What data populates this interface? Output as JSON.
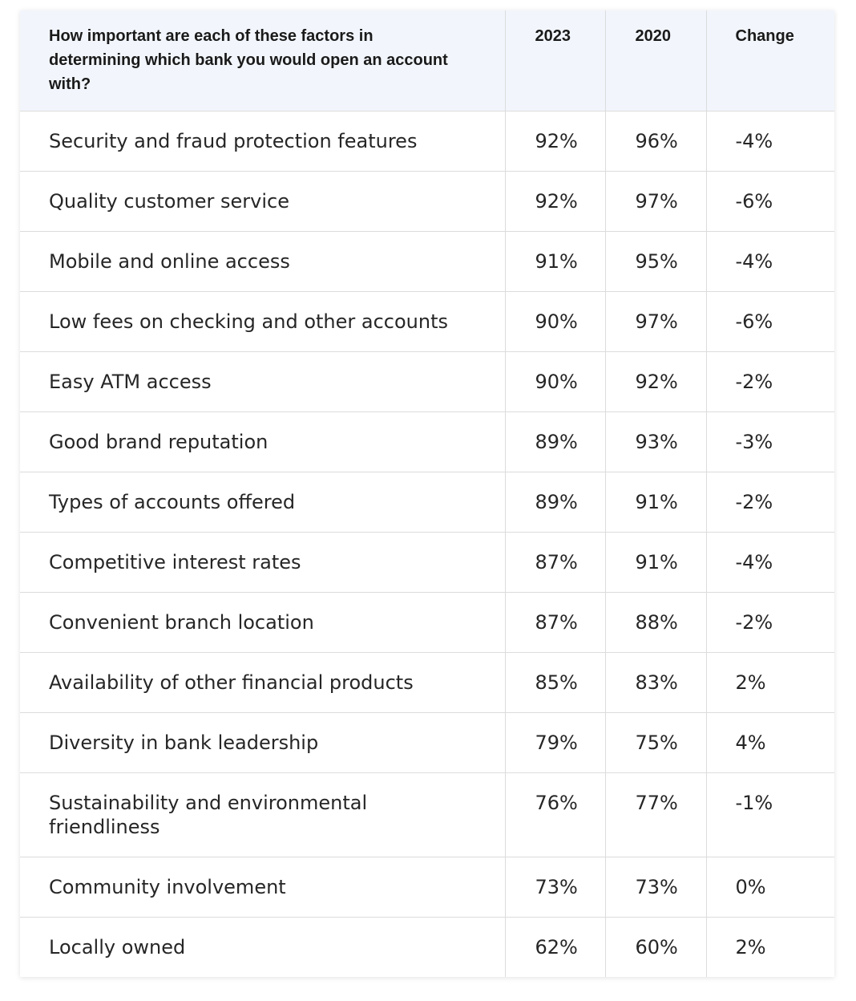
{
  "table": {
    "headers": {
      "factor": "How important are each of these factors in determining which bank you would open an account with?",
      "y2023": "2023",
      "y2020": "2020",
      "change": "Change"
    },
    "rows": [
      {
        "factor": "Security and fraud protection features",
        "y2023": "92%",
        "y2020": "96%",
        "change": "-4%"
      },
      {
        "factor": "Quality customer service",
        "y2023": "92%",
        "y2020": "97%",
        "change": "-6%"
      },
      {
        "factor": "Mobile and online access",
        "y2023": "91%",
        "y2020": "95%",
        "change": "-4%"
      },
      {
        "factor": "Low fees on checking and other accounts",
        "y2023": "90%",
        "y2020": "97%",
        "change": "-6%"
      },
      {
        "factor": "Easy ATM access",
        "y2023": "90%",
        "y2020": "92%",
        "change": "-2%"
      },
      {
        "factor": "Good brand reputation",
        "y2023": "89%",
        "y2020": "93%",
        "change": "-3%"
      },
      {
        "factor": "Types of accounts offered",
        "y2023": "89%",
        "y2020": "91%",
        "change": "-2%"
      },
      {
        "factor": "Competitive interest rates",
        "y2023": "87%",
        "y2020": "91%",
        "change": "-4%"
      },
      {
        "factor": "Convenient branch location",
        "y2023": "87%",
        "y2020": "88%",
        "change": "-2%"
      },
      {
        "factor": "Availability of other financial products",
        "y2023": "85%",
        "y2020": "83%",
        "change": "2%"
      },
      {
        "factor": "Diversity in bank leadership",
        "y2023": "79%",
        "y2020": "75%",
        "change": "4%"
      },
      {
        "factor": "Sustainability and environmental friendliness",
        "y2023": "76%",
        "y2020": "77%",
        "change": "-1%"
      },
      {
        "factor": "Community involvement",
        "y2023": "73%",
        "y2020": "73%",
        "change": "0%"
      },
      {
        "factor": "Locally owned",
        "y2023": "62%",
        "y2020": "60%",
        "change": "2%"
      }
    ]
  },
  "colors": {
    "header_background": "#f2f6fc",
    "border": "#dcdcdc",
    "text": "#262626"
  }
}
